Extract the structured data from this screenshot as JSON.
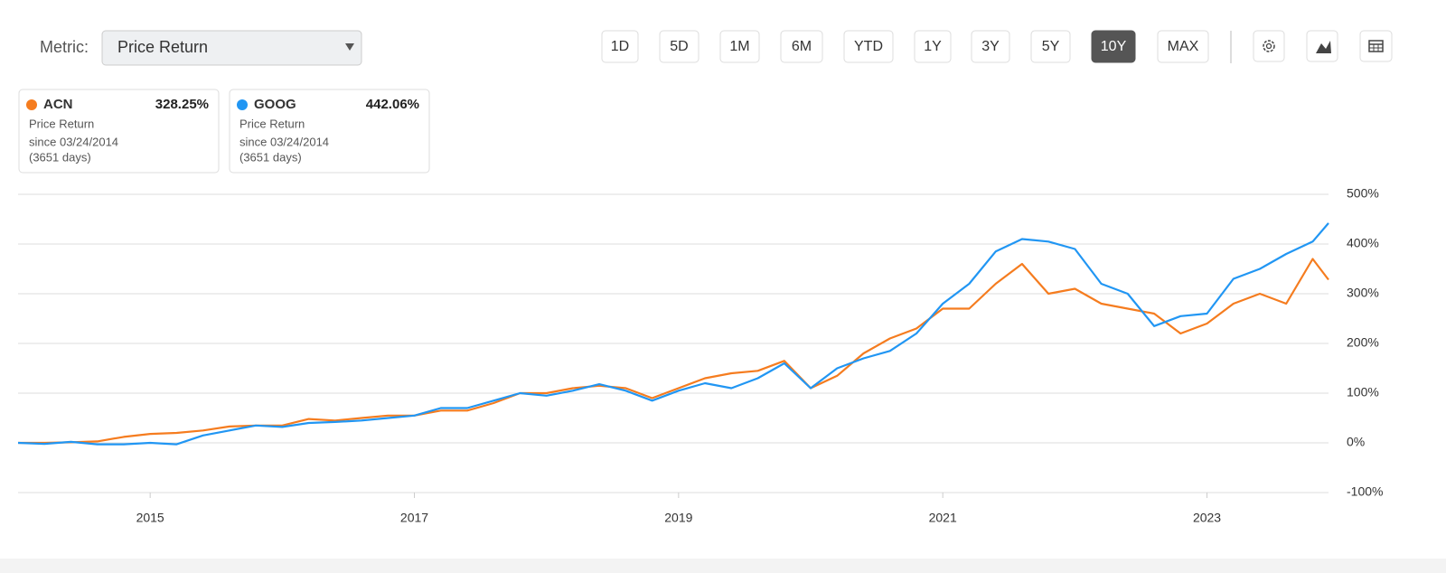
{
  "metric_label": "Metric:",
  "metric_value": "Price Return",
  "ranges": [
    "1D",
    "5D",
    "1M",
    "6M",
    "YTD",
    "1Y",
    "3Y",
    "5Y",
    "10Y",
    "MAX"
  ],
  "selected_range": 8,
  "cards": [
    {
      "ticker": "ACN",
      "value": "328.25%",
      "metric": "Price Return",
      "since": "since 03/24/2014",
      "days": "(3651 days)"
    },
    {
      "ticker": "GOOG",
      "value": "442.06%",
      "metric": "Price Return",
      "since": "since 03/24/2014",
      "days": "(3651 days)"
    }
  ],
  "chart_data": {
    "type": "line",
    "x": [
      2014.0,
      2014.2,
      2014.4,
      2014.6,
      2014.8,
      2015.0,
      2015.2,
      2015.4,
      2015.6,
      2015.8,
      2016.0,
      2016.2,
      2016.4,
      2016.6,
      2016.8,
      2017.0,
      2017.2,
      2017.4,
      2017.6,
      2017.8,
      2018.0,
      2018.2,
      2018.4,
      2018.6,
      2018.8,
      2019.0,
      2019.2,
      2019.4,
      2019.6,
      2019.8,
      2020.0,
      2020.2,
      2020.4,
      2020.6,
      2020.8,
      2021.0,
      2021.2,
      2021.4,
      2021.6,
      2021.8,
      2022.0,
      2022.2,
      2022.4,
      2022.6,
      2022.8,
      2023.0,
      2023.2,
      2023.4,
      2023.6,
      2023.8,
      2023.92
    ],
    "series": [
      {
        "name": "ACN",
        "color": "#f57c1f",
        "values": [
          0,
          0,
          1,
          3,
          12,
          18,
          20,
          25,
          33,
          35,
          35,
          48,
          45,
          50,
          55,
          55,
          65,
          65,
          80,
          100,
          100,
          110,
          115,
          110,
          90,
          110,
          130,
          140,
          145,
          165,
          110,
          135,
          180,
          210,
          230,
          270,
          270,
          320,
          360,
          300,
          310,
          280,
          270,
          260,
          220,
          240,
          280,
          300,
          280,
          370,
          328.25
        ]
      },
      {
        "name": "GOOG",
        "color": "#2196f3",
        "values": [
          0,
          -2,
          2,
          -3,
          -3,
          0,
          -3,
          15,
          25,
          35,
          32,
          40,
          42,
          45,
          50,
          55,
          70,
          70,
          85,
          100,
          95,
          105,
          118,
          105,
          85,
          105,
          120,
          110,
          130,
          160,
          110,
          150,
          170,
          185,
          220,
          280,
          320,
          385,
          410,
          405,
          390,
          320,
          300,
          235,
          255,
          260,
          330,
          350,
          380,
          405,
          442.06
        ]
      }
    ],
    "xlim": [
      2014.0,
      2023.92
    ],
    "xticks": [
      2015,
      2017,
      2019,
      2021,
      2023
    ],
    "ylim": [
      -100,
      500
    ],
    "yticks": [
      {
        "value": -100,
        "label": "-100%"
      },
      {
        "value": 0,
        "label": "0%"
      },
      {
        "value": 100,
        "label": "100%"
      },
      {
        "value": 200,
        "label": "200%"
      },
      {
        "value": 300,
        "label": "300%"
      },
      {
        "value": 400,
        "label": "400%"
      },
      {
        "value": 500,
        "label": "500%"
      }
    ],
    "grid": true
  }
}
